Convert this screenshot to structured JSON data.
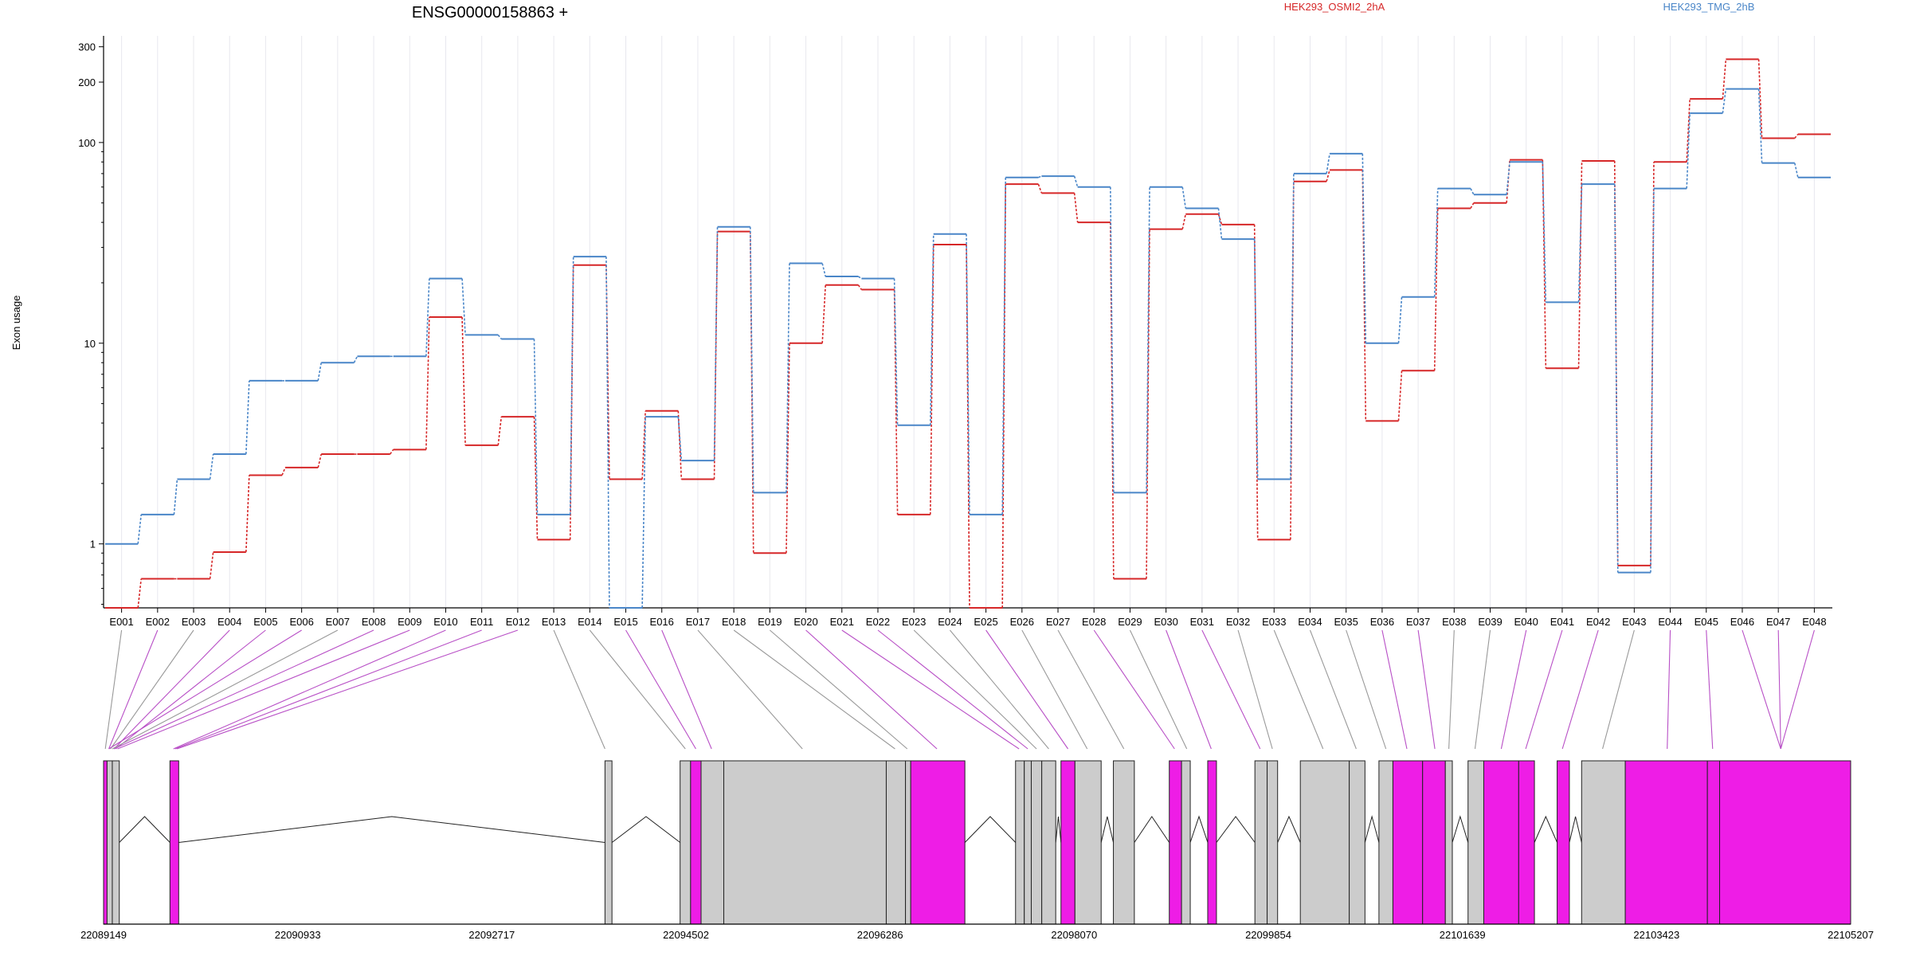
{
  "chart_data": {
    "type": "line",
    "title": "ENSG00000158863 +",
    "ylabel": "Exon usage",
    "xlabel": "",
    "yscale": "log",
    "ylim": [
      0.48,
      340
    ],
    "yticks": [
      1,
      10,
      100,
      200,
      300
    ],
    "ytick_labels": [
      "1",
      "10",
      "100",
      "200",
      "300"
    ],
    "grid": "vertical lines at each exon",
    "legend_placement": "top",
    "categories": [
      "E001",
      "E002",
      "E003",
      "E004",
      "E005",
      "E006",
      "E007",
      "E008",
      "E009",
      "E010",
      "E011",
      "E012",
      "E013",
      "E014",
      "E015",
      "E016",
      "E017",
      "E018",
      "E019",
      "E020",
      "E021",
      "E022",
      "E023",
      "E024",
      "E025",
      "E026",
      "E027",
      "E028",
      "E029",
      "E030",
      "E031",
      "E032",
      "E033",
      "E034",
      "E035",
      "E036",
      "E037",
      "E038",
      "E039",
      "E040",
      "E041",
      "E042",
      "E043",
      "E044",
      "E045",
      "E046",
      "E047",
      "E048"
    ],
    "series": [
      {
        "name": "HEK293_OSMI2_2hA",
        "color": "#d62728",
        "values": [
          0.48,
          0.67,
          0.67,
          0.91,
          2.2,
          2.4,
          2.8,
          2.8,
          2.95,
          13.5,
          3.1,
          4.3,
          1.05,
          24.5,
          2.1,
          4.6,
          2.1,
          36,
          0.9,
          10,
          19.5,
          18.5,
          1.4,
          31,
          0.48,
          62,
          56,
          40,
          0.67,
          37,
          44,
          39,
          1.05,
          64,
          73,
          4.1,
          7.3,
          47,
          50,
          82,
          7.5,
          81,
          0.78,
          80,
          165,
          260,
          105,
          110
        ]
      },
      {
        "name": "HEK293_TMG_2hB",
        "color": "#4a86c8",
        "values": [
          1.0,
          1.4,
          2.1,
          2.8,
          6.5,
          6.5,
          8,
          8.6,
          8.6,
          21,
          11,
          10.5,
          1.4,
          27,
          0.48,
          4.3,
          2.6,
          38,
          1.8,
          25,
          21.5,
          21,
          3.9,
          35,
          1.4,
          67,
          68,
          60,
          1.8,
          60,
          47,
          33,
          2.1,
          70,
          88,
          10,
          17,
          59,
          55,
          80,
          16,
          62,
          0.72,
          59,
          140,
          185,
          79,
          67
        ]
      }
    ],
    "gene_track": {
      "coordinate_labels": [
        "22089149",
        "22090933",
        "22092717",
        "22094502",
        "22096286",
        "22098070",
        "22099854",
        "22101639",
        "22103423",
        "22105207"
      ],
      "highlight_color": "#ee1de6",
      "feature_color": "#cccccc",
      "highlighted_exons": [
        "E002",
        "E004",
        "E005",
        "E006",
        "E008",
        "E009",
        "E010",
        "E011",
        "E012",
        "E015",
        "E016",
        "E020",
        "E021",
        "E022",
        "E025",
        "E028",
        "E030",
        "E031",
        "E036",
        "E037",
        "E040",
        "E041",
        "E042",
        "E044",
        "E045",
        "E046",
        "E047",
        "E048"
      ]
    }
  }
}
